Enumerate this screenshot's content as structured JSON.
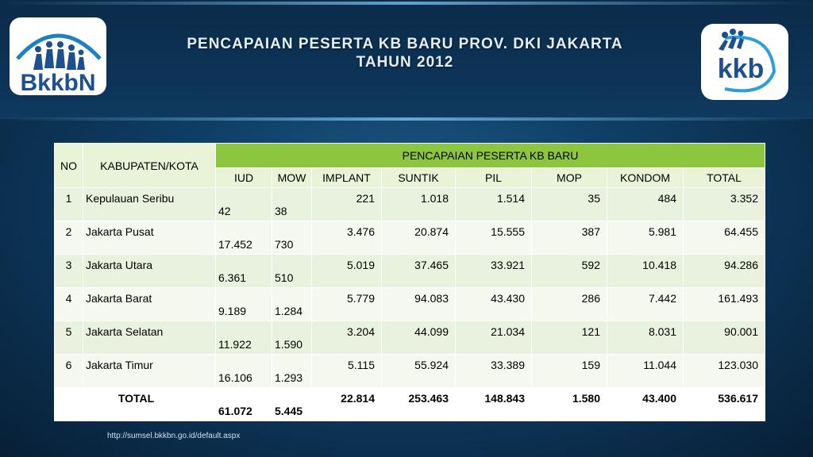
{
  "title": {
    "line1": "PENCAPAIAN PESERTA KB BARU PROV. DKI JAKARTA",
    "line2": "TAHUN 2012"
  },
  "logos": {
    "left": {
      "text": "BkkbN",
      "icon": "bkkbn-logo"
    },
    "right": {
      "text": "kkb",
      "icon": "kkb-logo"
    }
  },
  "table": {
    "headers": {
      "no": "NO",
      "kabupaten": "KABUPATEN/KOTA",
      "group": "PENCAPAIAN PESERTA KB BARU",
      "cols": [
        "IUD",
        "MOW",
        "IMPLANT",
        "SUNTIK",
        "PIL",
        "MOP",
        "KONDOM",
        "TOTAL"
      ]
    },
    "rows": [
      {
        "no": "1",
        "name": "Kepulauan Seribu",
        "iud": "42",
        "mow": "38",
        "implant": "221",
        "suntik": "1.018",
        "pil": "1.514",
        "mop": "35",
        "kondom": "484",
        "total": "3.352"
      },
      {
        "no": "2",
        "name": "Jakarta Pusat",
        "iud": "17.452",
        "mow": "730",
        "implant": "3.476",
        "suntik": "20.874",
        "pil": "15.555",
        "mop": "387",
        "kondom": "5.981",
        "total": "64.455"
      },
      {
        "no": "3",
        "name": "Jakarta Utara",
        "iud": "6.361",
        "mow": "510",
        "implant": "5.019",
        "suntik": "37.465",
        "pil": "33.921",
        "mop": "592",
        "kondom": "10.418",
        "total": "94.286"
      },
      {
        "no": "4",
        "name": "Jakarta Barat",
        "iud": "9.189",
        "mow": "1.284",
        "implant": "5.779",
        "suntik": "94.083",
        "pil": "43.430",
        "mop": "286",
        "kondom": "7.442",
        "total": "161.493"
      },
      {
        "no": "5",
        "name": "Jakarta Selatan",
        "iud": "11.922",
        "mow": "1.590",
        "implant": "3.204",
        "suntik": "44.099",
        "pil": "21.034",
        "mop": "121",
        "kondom": "8.031",
        "total": "90.001"
      },
      {
        "no": "6",
        "name": "Jakarta Timur",
        "iud": "16.106",
        "mow": "1.293",
        "implant": "5.115",
        "suntik": "55.924",
        "pil": "33.389",
        "mop": "159",
        "kondom": "11.044",
        "total": "123.030"
      }
    ],
    "total": {
      "label": "TOTAL",
      "iud": "61.072",
      "mow": "5.445",
      "implant": "22.814",
      "suntik": "253.463",
      "pil": "148.843",
      "mop": "1.580",
      "kondom": "43.400",
      "total": "536.617"
    }
  },
  "source": "http://sumsel.bkkbn.go.id/default.aspx",
  "colors": {
    "header_green": "#8cc63f",
    "row_light": "#e9f2de",
    "logo_blue": "#1e7fc4"
  }
}
